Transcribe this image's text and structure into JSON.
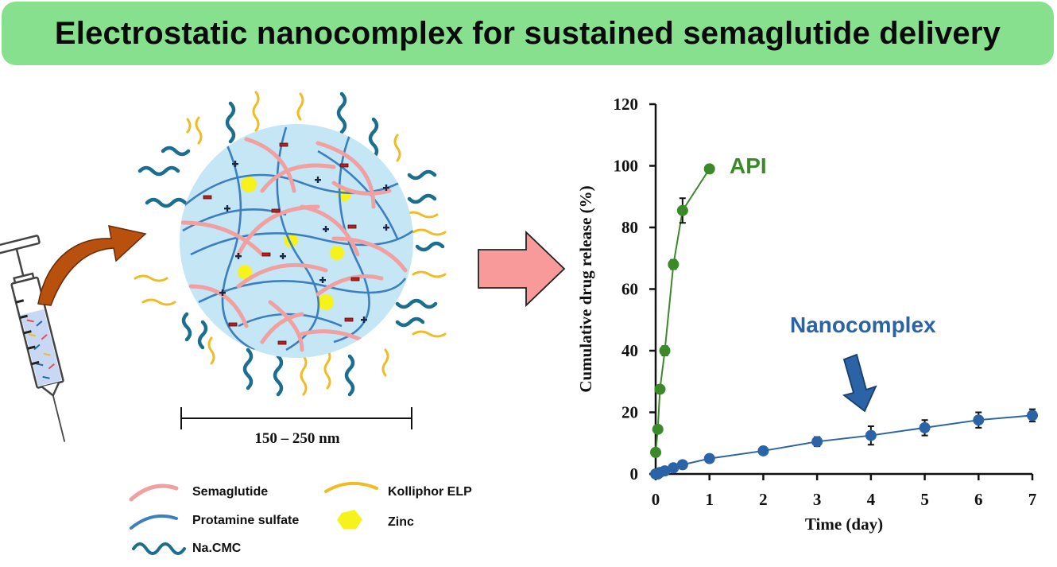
{
  "title": "Electrostatic nanocomplex for sustained semaglutide delivery",
  "scale_bar": {
    "label": "150 – 250 nm"
  },
  "legend": [
    {
      "key": "semaglutide",
      "label": "Semaglutide"
    },
    {
      "key": "kolliphor",
      "label": "Kolliphor ELP"
    },
    {
      "key": "protamine",
      "label": "Protamine sulfate"
    },
    {
      "key": "zinc",
      "label": "Zinc"
    },
    {
      "key": "cmc",
      "label": "Na.CMC"
    }
  ],
  "colors": {
    "semaglutide": "#f0a0a0",
    "protamine": "#3c7fc0",
    "cmc": "#1a6e90",
    "kolliphor": "#f0bc22",
    "zinc": "#f6f21c",
    "particle": "#c5e6f4",
    "api": "#3a8a2a",
    "nanocomplex": "#2a64a6",
    "arrow_brown": "#b8500e",
    "arrow_pink": "#f89a9a"
  },
  "chart_data": {
    "type": "line",
    "xlabel": "Time (day)",
    "ylabel": "Cumulative drug release (%)",
    "xlim": [
      0,
      7
    ],
    "ylim": [
      0,
      120
    ],
    "xticks": [
      0,
      1,
      2,
      3,
      4,
      5,
      6,
      7
    ],
    "yticks": [
      0,
      20,
      40,
      60,
      80,
      100,
      120
    ],
    "grid": false,
    "series": [
      {
        "name": "API",
        "x": [
          0,
          0.04,
          0.08,
          0.17,
          0.33,
          0.5,
          1
        ],
        "y": [
          7,
          14.5,
          27.5,
          40,
          68,
          85.5,
          99
        ],
        "err": [
          0.5,
          1,
          1,
          1.5,
          1.5,
          4,
          0.5
        ]
      },
      {
        "name": "Nanocomplex",
        "x": [
          0,
          0.04,
          0.08,
          0.17,
          0.33,
          0.5,
          1,
          2,
          3,
          4,
          5,
          6,
          7
        ],
        "y": [
          0,
          0,
          0.5,
          1,
          2,
          3,
          5,
          7.5,
          10.5,
          12.5,
          15,
          17.5,
          19
        ],
        "err": [
          0.3,
          0.3,
          0.3,
          0.5,
          0.5,
          0.5,
          0.8,
          1,
          1.5,
          3,
          2.5,
          2.5,
          2
        ]
      }
    ]
  }
}
